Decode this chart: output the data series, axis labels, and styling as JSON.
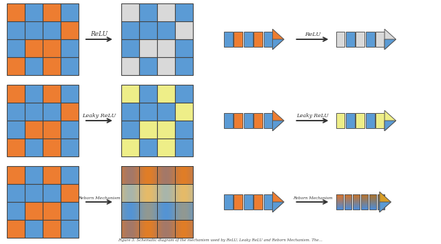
{
  "BLUE": "#5B9BD5",
  "ORANGE": "#ED7D31",
  "LGRAY": "#D9D9D9",
  "YELLOW": "#EEEE88",
  "BG": "#FFFFFF",
  "DARK": "#333333",
  "input_pattern": [
    [
      "O",
      "B",
      "O",
      "B"
    ],
    [
      "B",
      "B",
      "B",
      "O"
    ],
    [
      "B",
      "O",
      "O",
      "B"
    ],
    [
      "O",
      "B",
      "O",
      "B"
    ]
  ],
  "relu_out": [
    [
      "G",
      "B",
      "G",
      "B"
    ],
    [
      "B",
      "B",
      "B",
      "G"
    ],
    [
      "B",
      "G",
      "G",
      "B"
    ],
    [
      "G",
      "B",
      "G",
      "B"
    ]
  ],
  "leaky_out": [
    [
      "Y",
      "B",
      "Y",
      "B"
    ],
    [
      "B",
      "B",
      "B",
      "Y"
    ],
    [
      "B",
      "Y",
      "Y",
      "B"
    ],
    [
      "Y",
      "B",
      "Y",
      "B"
    ]
  ],
  "row_labels": [
    "ReLU",
    "Leaky ReLU",
    "Reborn Mechanism"
  ],
  "caption": "Figure 3: Schematic diagram of the mechanism used by ReLU, Leaky ReLU and Reborn Mechanism. The..."
}
